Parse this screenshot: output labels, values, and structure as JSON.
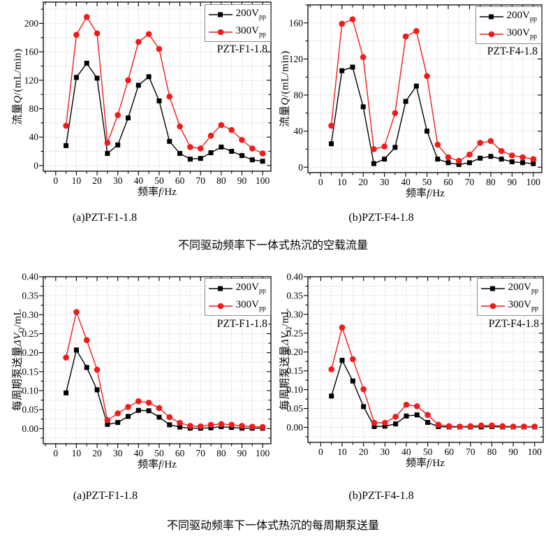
{
  "colors": {
    "background": "#ffffff",
    "grid": "#c4c4c4",
    "frame": "#000000",
    "legend_border": "#8a8a8a",
    "series_200vpp": "#000000",
    "series_300vpp": "#ee1c1c"
  },
  "captions": {
    "top": {
      "a": "(a)PZT-F1-1.8",
      "b": "(b)PZT-F4-1.8",
      "main": "不同驱动频率下一体式热沉的空载流量"
    },
    "bottom": {
      "a": "(a)PZT-F1-1.8",
      "b": "(b)PZT-F4-1.8",
      "main": "不同驱动频率下一体式热沉的每周期泵送量"
    }
  },
  "chart_data": [
    {
      "type": "line",
      "panel": "top-left",
      "annotation": "PZT-F1-1.8",
      "xlabel": {
        "cn": "频率",
        "sym": "f",
        "unit": "/Hz"
      },
      "ylabel": {
        "cn": "流量",
        "sym": "Q",
        "unit": "/(mL/min)"
      },
      "x": [
        5,
        10,
        15,
        20,
        25,
        30,
        35,
        40,
        45,
        50,
        55,
        60,
        65,
        70,
        75,
        80,
        85,
        90,
        95,
        100
      ],
      "series": [
        {
          "name": "200V",
          "name_sub": "pp",
          "color": "#000000",
          "marker": "square",
          "values": [
            28,
            124,
            144,
            123,
            17,
            29,
            67,
            113,
            125,
            91,
            34,
            17,
            9,
            10,
            18,
            26,
            20,
            14,
            8,
            6
          ]
        },
        {
          "name": "300V",
          "name_sub": "pp",
          "color": "#ee1c1c",
          "marker": "circle",
          "values": [
            56,
            184,
            209,
            186,
            32,
            71,
            120,
            174,
            185,
            164,
            97,
            55,
            26,
            24,
            42,
            57,
            50,
            36,
            24,
            17
          ]
        }
      ],
      "xlim": [
        -6,
        104
      ],
      "ylim": [
        -8,
        230
      ],
      "x_major": 10,
      "x_minor": 5,
      "y_major": 40,
      "y_minor": 20,
      "y_decimals": 0,
      "grid": true,
      "legend_position": "top-right"
    },
    {
      "type": "line",
      "panel": "top-right",
      "annotation": "PZT-F4-1.8",
      "xlabel": {
        "cn": "频率",
        "sym": "f",
        "unit": "/Hz"
      },
      "ylabel": {
        "cn": "流量",
        "sym": "Q",
        "unit": "/(mL/min)"
      },
      "x": [
        5,
        10,
        15,
        20,
        25,
        30,
        35,
        40,
        45,
        50,
        55,
        60,
        65,
        70,
        75,
        80,
        85,
        90,
        95,
        100
      ],
      "series": [
        {
          "name": "200V",
          "name_sub": "pp",
          "color": "#000000",
          "marker": "square",
          "values": [
            26,
            107,
            111,
            67,
            4,
            9,
            22,
            73,
            90,
            40,
            9,
            5,
            3,
            5,
            10,
            12,
            9,
            6,
            5,
            4
          ]
        },
        {
          "name": "300V",
          "name_sub": "pp",
          "color": "#ee1c1c",
          "marker": "circle",
          "values": [
            46,
            159,
            164,
            122,
            20,
            23,
            60,
            145,
            151,
            101,
            25,
            11,
            7,
            14,
            27,
            29,
            18,
            13,
            11,
            9
          ]
        }
      ],
      "xlim": [
        -6,
        104
      ],
      "ylim": [
        -6,
        180
      ],
      "x_major": 10,
      "x_minor": 5,
      "y_major": 40,
      "y_minor": 20,
      "y_decimals": 0,
      "grid": true,
      "legend_position": "top-right"
    },
    {
      "type": "line",
      "panel": "bottom-left",
      "annotation": "PZT-F1-1.8",
      "xlabel": {
        "cn": "频率",
        "sym": "f",
        "unit": "/Hz"
      },
      "ylabel": {
        "cn": "每周期泵送量",
        "delta": "Δ",
        "sym": "V",
        "sub": "Q",
        "unit": "/mL"
      },
      "x": [
        5,
        10,
        15,
        20,
        25,
        30,
        35,
        40,
        45,
        50,
        55,
        60,
        65,
        70,
        75,
        80,
        85,
        90,
        95,
        100
      ],
      "series": [
        {
          "name": "200V",
          "name_sub": "pp",
          "color": "#000000",
          "marker": "square",
          "values": [
            0.094,
            0.207,
            0.161,
            0.102,
            0.011,
            0.016,
            0.032,
            0.048,
            0.047,
            0.03,
            0.01,
            0.004,
            0.001,
            0.001,
            0.002,
            0.005,
            0.003,
            0.001,
            0.001,
            0.001
          ]
        },
        {
          "name": "300V",
          "name_sub": "pp",
          "color": "#ee1c1c",
          "marker": "circle",
          "values": [
            0.187,
            0.307,
            0.233,
            0.155,
            0.022,
            0.04,
            0.057,
            0.072,
            0.068,
            0.054,
            0.03,
            0.015,
            0.007,
            0.006,
            0.01,
            0.012,
            0.01,
            0.007,
            0.005,
            0.004
          ]
        }
      ],
      "xlim": [
        -6,
        104
      ],
      "ylim": [
        -0.04,
        0.4
      ],
      "x_major": 10,
      "x_minor": 5,
      "y_major": 0.05,
      "y_minor": 0.025,
      "y_decimals": 2,
      "grid": true,
      "legend_position": "top-right"
    },
    {
      "type": "line",
      "panel": "bottom-right",
      "annotation": "PZT-F4-1.8",
      "xlabel": {
        "cn": "频率",
        "sym": "f",
        "unit": "/Hz"
      },
      "ylabel": {
        "cn": "每周期泵送量",
        "delta": "Δ",
        "sym": "V",
        "sub": "Q",
        "unit": "/mL"
      },
      "x": [
        5,
        10,
        15,
        20,
        25,
        30,
        35,
        40,
        45,
        50,
        55,
        60,
        65,
        70,
        75,
        80,
        85,
        90,
        95,
        100
      ],
      "series": [
        {
          "name": "200V",
          "name_sub": "pp",
          "color": "#000000",
          "marker": "square",
          "values": [
            0.083,
            0.178,
            0.123,
            0.055,
            0.002,
            0.003,
            0.009,
            0.03,
            0.033,
            0.013,
            0.002,
            0.001,
            0.001,
            0.001,
            0.001,
            0.002,
            0.001,
            0.001,
            0.001,
            0.001
          ]
        },
        {
          "name": "300V",
          "name_sub": "pp",
          "color": "#ee1c1c",
          "marker": "circle",
          "values": [
            0.154,
            0.265,
            0.181,
            0.101,
            0.012,
            0.012,
            0.028,
            0.06,
            0.056,
            0.033,
            0.007,
            0.003,
            0.002,
            0.003,
            0.005,
            0.005,
            0.003,
            0.002,
            0.002,
            0.002
          ]
        }
      ],
      "xlim": [
        -6,
        104
      ],
      "ylim": [
        -0.04,
        0.4
      ],
      "x_major": 10,
      "x_minor": 5,
      "y_major": 0.05,
      "y_minor": 0.025,
      "y_decimals": 2,
      "grid": true,
      "legend_position": "top-right"
    }
  ]
}
